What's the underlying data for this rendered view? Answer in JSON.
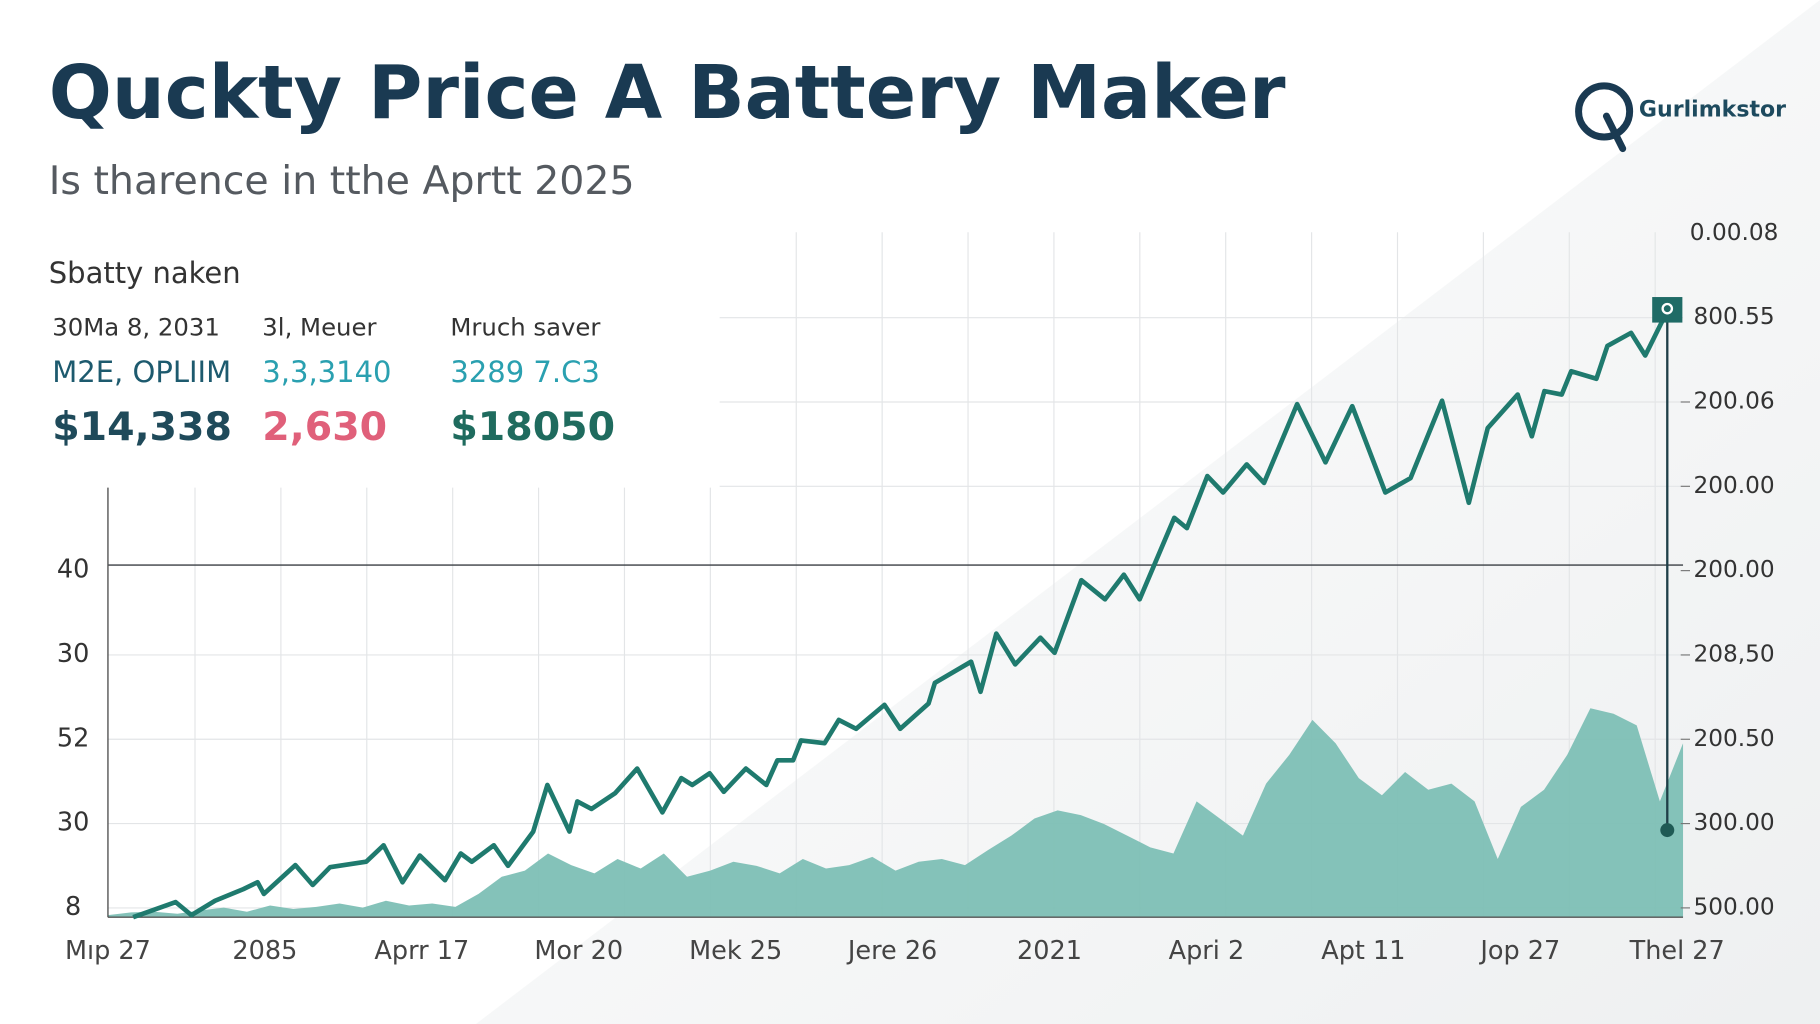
{
  "header": {
    "title": "Quckty Price A Battery Maker",
    "subtitle": "Is tharence in tthe Aprtt 2025",
    "logo_text": "Gurlimkstor"
  },
  "stats": {
    "heading": "Sbatty naken",
    "columns": [
      {
        "label": "30Ma 8, 2031",
        "sub": "M2E, OPLIIM",
        "value": "$14,338",
        "sub_color": "#1d5a6e",
        "value_color": "#1f4a5a"
      },
      {
        "label": "3l, Meuer",
        "sub": "3,3,3140",
        "value": "2,630",
        "sub_color": "#2aa0b0",
        "value_color": "#e0607a"
      },
      {
        "label": "Mruch saver",
        "sub": "3289 7.C3",
        "value": "$18050",
        "sub_color": "#2aa0b0",
        "value_color": "#1f6b5e"
      }
    ]
  },
  "chart_data": {
    "type": "line",
    "x_labels": [
      "Mıp 27",
      "2085",
      "Aprr 17",
      "Mor 20",
      "Mek 25",
      "Jere 26",
      "2021",
      "Apri 2",
      "Apt 11",
      "Jop 27",
      "Thel 27"
    ],
    "y_labels": [
      "40",
      "30",
      "52",
      "30",
      "8"
    ],
    "y2_labels": [
      "0.00.08",
      "800.55",
      "200.06",
      "200.00",
      "200.00",
      "208,50",
      "200.50",
      "300.00",
      "500.00"
    ],
    "xlim": [
      0,
      100
    ],
    "ylim": [
      0,
      100
    ],
    "grid": true,
    "reference_line": 51.4,
    "series": [
      {
        "type": "line",
        "color": "#1f7a6e",
        "x": [
          1.6,
          4.3,
          5.3,
          6.8,
          8.6,
          9.5,
          9.9,
          11.9,
          13.0,
          14.1,
          16.4,
          17.5,
          18.7,
          19.8,
          21.4,
          22.4,
          23.1,
          24.5,
          25.4,
          27.0,
          27.9,
          29.3,
          29.8,
          30.7,
          32.2,
          33.6,
          35.2,
          36.4,
          37.1,
          38.2,
          39.1,
          40.5,
          41.8,
          42.5,
          43.5,
          44.0,
          45.5,
          46.4,
          47.5,
          49.3,
          50.3,
          52.1,
          52.5,
          54.8,
          55.4,
          56.4,
          57.6,
          59.2,
          60.1,
          61.8,
          63.3,
          64.5,
          65.5,
          67.7,
          68.5,
          69.8,
          70.8,
          72.3,
          73.4,
          75.5,
          77.3,
          79.0,
          81.1,
          82.7,
          84.7,
          86.4,
          87.6,
          89.5,
          90.4,
          91.2,
          92.3,
          92.9,
          94.5,
          95.2,
          96.7,
          97.6,
          99.0
        ],
        "values": [
          0,
          2.2,
          0.3,
          2.4,
          4.1,
          5.1,
          3.4,
          7.6,
          4.7,
          7.3,
          8.1,
          10.5,
          5.1,
          9.0,
          5.4,
          9.3,
          8.1,
          10.5,
          7.5,
          12.5,
          19.3,
          12.5,
          16.9,
          15.8,
          18.1,
          21.7,
          15.3,
          20.3,
          19.3,
          21.0,
          18.3,
          21.7,
          19.3,
          22.9,
          22.9,
          25.8,
          25.4,
          28.8,
          27.5,
          31.0,
          27.5,
          31.2,
          34.2,
          37.3,
          32.9,
          41.4,
          36.9,
          40.8,
          38.6,
          49.2,
          46.4,
          50.0,
          46.4,
          58.3,
          56.8,
          64.4,
          62.0,
          66.1,
          63.4,
          74.9,
          66.4,
          74.6,
          62.0,
          64.1,
          75.4,
          60.5,
          71.4,
          76.3,
          70.2,
          76.8,
          76.3,
          79.7,
          78.6,
          83.4,
          85.3,
          82.0,
          88.5
        ]
      },
      {
        "type": "area",
        "color": "#7dbfb5",
        "values": [
          0.3,
          0.7,
          0.8,
          0.5,
          1,
          1.4,
          0.8,
          1.7,
          1.2,
          1.5,
          2,
          1.4,
          2.4,
          1.7,
          2,
          1.5,
          3.4,
          5.9,
          6.8,
          9.3,
          7.6,
          6.4,
          8.5,
          7.1,
          9.3,
          5.9,
          6.8,
          8.1,
          7.5,
          6.4,
          8.5,
          7.1,
          7.6,
          8.8,
          6.8,
          8.1,
          8.5,
          7.6,
          9.8,
          11.9,
          14.4,
          15.6,
          14.9,
          13.6,
          11.9,
          10.2,
          9.3,
          16.9,
          14.4,
          11.9,
          19.5,
          23.7,
          28.8,
          25.4,
          20.3,
          17.8,
          21.2,
          18.6,
          19.5,
          16.9,
          8.5,
          16.1,
          18.6,
          23.7,
          30.5,
          29.7,
          28,
          16.9,
          25.4
        ]
      }
    ]
  }
}
